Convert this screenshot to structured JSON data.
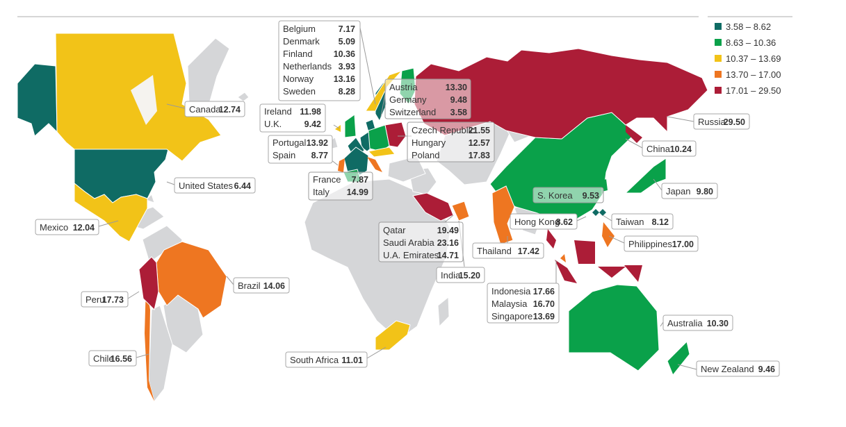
{
  "colors": {
    "band1": "#0f6b64",
    "band2": "#0aa14a",
    "band3": "#f2c318",
    "band4": "#ee7621",
    "band5": "#ac1d37",
    "no_data": "#d5d6d8",
    "border": "#ffffff"
  },
  "legend": [
    {
      "range": "3.58 – 8.62",
      "color": "#0f6b64"
    },
    {
      "range": "8.63 – 10.36",
      "color": "#0aa14a"
    },
    {
      "range": "10.37 – 13.69",
      "color": "#f2c318"
    },
    {
      "range": "13.70 – 17.00",
      "color": "#ee7621"
    },
    {
      "range": "17.01 – 29.50",
      "color": "#ac1d37"
    }
  ],
  "labels": {
    "nordic": [
      {
        "name": "Belgium",
        "value": "7.17"
      },
      {
        "name": "Denmark",
        "value": "5.09"
      },
      {
        "name": "Finland",
        "value": "10.36"
      },
      {
        "name": "Netherlands",
        "value": "3.93"
      },
      {
        "name": "Norway",
        "value": "13.16"
      },
      {
        "name": "Sweden",
        "value": "8.28"
      }
    ],
    "alpine": [
      {
        "name": "Austria",
        "value": "13.30"
      },
      {
        "name": "Germany",
        "value": "9.48"
      },
      {
        "name": "Switzerland",
        "value": "3.58"
      }
    ],
    "ireland_uk": [
      {
        "name": "Ireland",
        "value": "11.98"
      },
      {
        "name": "U.K.",
        "value": "9.42"
      }
    ],
    "central": [
      {
        "name": "Czech Republic",
        "value": "21.55"
      },
      {
        "name": "Hungary",
        "value": "12.57"
      },
      {
        "name": "Poland",
        "value": "17.83"
      }
    ],
    "iberia": [
      {
        "name": "Portugal",
        "value": "13.92"
      },
      {
        "name": "Spain",
        "value": "8.77"
      }
    ],
    "france_italy": [
      {
        "name": "France",
        "value": "7.87"
      },
      {
        "name": "Italy",
        "value": "14.99"
      }
    ],
    "gulf": [
      {
        "name": "Qatar",
        "value": "19.49"
      },
      {
        "name": "Saudi Arabia",
        "value": "23.16"
      },
      {
        "name": "U.A. Emirates",
        "value": "14.71"
      }
    ],
    "sea": [
      {
        "name": "Indonesia",
        "value": "17.66"
      },
      {
        "name": "Malaysia",
        "value": "16.70"
      },
      {
        "name": "Singapore",
        "value": "13.69"
      }
    ],
    "singles": {
      "canada": {
        "name": "Canada",
        "value": "12.74"
      },
      "united_states": {
        "name": "United States",
        "value": "6.44"
      },
      "mexico": {
        "name": "Mexico",
        "value": "12.04"
      },
      "brazil": {
        "name": "Brazil",
        "value": "14.06"
      },
      "peru": {
        "name": "Peru",
        "value": "17.73"
      },
      "chile": {
        "name": "Chile",
        "value": "16.56"
      },
      "south_africa": {
        "name": "South Africa",
        "value": "11.01"
      },
      "russia": {
        "name": "Russia",
        "value": "29.50"
      },
      "china": {
        "name": "China",
        "value": "10.24"
      },
      "japan": {
        "name": "Japan",
        "value": "9.80"
      },
      "s_korea": {
        "name": "S. Korea",
        "value": "9.53"
      },
      "hong_kong": {
        "name": "Hong Kong",
        "value": "8.62"
      },
      "taiwan": {
        "name": "Taiwan",
        "value": "8.12"
      },
      "philippines": {
        "name": "Philippines",
        "value": "17.00"
      },
      "thailand": {
        "name": "Thailand",
        "value": "17.42"
      },
      "india": {
        "name": "India",
        "value": "15.20"
      },
      "australia": {
        "name": "Australia",
        "value": "10.30"
      },
      "new_zealand": {
        "name": "New Zealand",
        "value": "9.46"
      }
    }
  }
}
